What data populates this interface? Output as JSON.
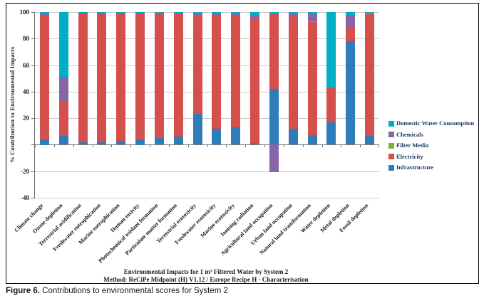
{
  "figure": {
    "caption_label": "Figure 6.",
    "caption_text": "Contributions to environmental scores for System 2"
  },
  "chart_data": {
    "type": "bar",
    "stacked": true,
    "title_line1": "Environmental Impacts for 1 m³ Filtered Water by System 2",
    "title_line2": "Method: ReCiPe Midpoint (H) V1.12 / Europe Recipe H - Characterisation",
    "ylabel": "% Contribution to Environmental Impacts",
    "ylim": [
      -40,
      100
    ],
    "ytick_step": 20,
    "ytick_labels": [
      100,
      80,
      60,
      40,
      20,
      -20,
      -40
    ],
    "gridline_values": [
      100,
      80,
      60,
      40,
      20,
      -20,
      -40
    ],
    "grid": true,
    "legend_position": "right",
    "legend_order_top_to_bottom": [
      "Domestic Water Consumption",
      "Chemicals",
      "Filter Media",
      "Electricity",
      "Infrastructure"
    ],
    "categories": [
      "Climate change",
      "Ozone depletion",
      "Terrestrial acidification",
      "Freshwater eutrophication",
      "Marine eutrophication",
      "Human toxicity",
      "Photochemical oxidant formation",
      "Particulate matter formation",
      "Terrestrial ecotoxicity",
      "Freshwater ecotoxicity",
      "Marine ecotoxicity",
      "Ionising radiation",
      "Agricultural land occupation",
      "Urban land occupation",
      "Natural land transformation",
      "Water depletion",
      "Metal depletion",
      "Fossil depletion"
    ],
    "series": [
      {
        "name": "Infrastructure",
        "color": "#2e7cb9",
        "values": [
          4,
          6.5,
          2,
          2,
          3,
          4,
          5,
          6,
          23.5,
          12,
          13,
          1.5,
          42,
          12,
          7,
          17,
          78,
          6.5
        ]
      },
      {
        "name": "Electricity",
        "color": "#d5504c",
        "values": [
          93.5,
          26,
          97.5,
          96.5,
          96.5,
          94.5,
          94.5,
          92.5,
          74,
          85.5,
          84.5,
          93.5,
          56.5,
          85,
          85.5,
          25.5,
          10,
          92
        ]
      },
      {
        "name": "Filter Media",
        "color": "#76b041",
        "values": [
          0,
          0,
          0,
          0,
          0,
          0,
          0,
          0,
          0,
          0,
          0,
          0,
          0,
          0,
          0.5,
          0,
          0,
          0.3
        ]
      },
      {
        "name": "Chemicals",
        "color": "#8766a8",
        "values": [
          1.5,
          18,
          0.2,
          1,
          0,
          1,
          0,
          1,
          1.5,
          1.5,
          1.5,
          3,
          -21,
          2,
          5.5,
          0,
          10,
          0.7
        ]
      },
      {
        "name": "Domestic Water Consumption",
        "color": "#00aec6",
        "values": [
          1,
          49.5,
          0.3,
          0.5,
          0.5,
          0.5,
          0.5,
          0.5,
          1,
          1,
          1,
          2,
          1.5,
          1,
          1.5,
          57.5,
          2,
          0.5
        ]
      }
    ]
  }
}
